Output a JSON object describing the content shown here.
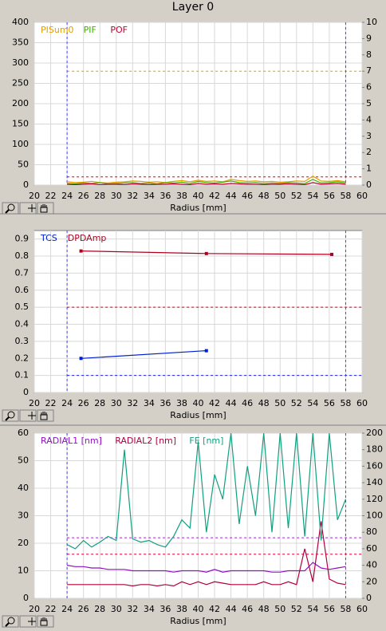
{
  "title": "Layer 0",
  "chart_data": [
    {
      "type": "line",
      "xlabel": "Radius [mm]",
      "x": [
        24,
        25,
        26,
        27,
        28,
        29,
        30,
        31,
        32,
        33,
        34,
        35,
        36,
        37,
        38,
        39,
        40,
        41,
        42,
        43,
        44,
        45,
        46,
        47,
        48,
        49,
        50,
        51,
        52,
        53,
        54,
        55,
        56,
        57,
        58
      ],
      "series": [
        {
          "name": "PISum0",
          "color": "#e0a000",
          "values": [
            8,
            6,
            7,
            9,
            6,
            5,
            7,
            8,
            10,
            9,
            7,
            8,
            6,
            9,
            11,
            8,
            12,
            9,
            10,
            8,
            14,
            11,
            9,
            10,
            8,
            9,
            7,
            8,
            10,
            9,
            22,
            10,
            9,
            11,
            8
          ]
        },
        {
          "name": "PIF",
          "color": "#40b000",
          "values": [
            4,
            3,
            5,
            4,
            6,
            3,
            4,
            5,
            6,
            4,
            5,
            3,
            6,
            5,
            7,
            4,
            9,
            6,
            5,
            7,
            10,
            6,
            5,
            6,
            4,
            5,
            4,
            6,
            5,
            4,
            14,
            5,
            6,
            8,
            5
          ]
        },
        {
          "name": "POF",
          "color": "#c00030",
          "values": [
            2,
            1,
            2,
            3,
            1,
            2,
            2,
            1,
            3,
            2,
            1,
            2,
            2,
            3,
            2,
            1,
            4,
            2,
            3,
            2,
            4,
            3,
            2,
            2,
            1,
            2,
            2,
            3,
            2,
            1,
            6,
            2,
            3,
            4,
            2
          ]
        }
      ],
      "xlim": [
        20,
        60
      ],
      "xticks": [
        20,
        22,
        24,
        26,
        28,
        30,
        32,
        34,
        36,
        38,
        40,
        42,
        44,
        46,
        48,
        50,
        52,
        54,
        56,
        58,
        60
      ],
      "ylim": [
        0,
        400
      ],
      "yticks": [
        0,
        50,
        100,
        150,
        200,
        250,
        300,
        350,
        400
      ],
      "y2lim": [
        0,
        10
      ],
      "y2ticks": [
        0,
        1,
        2,
        3,
        4,
        5,
        6,
        7,
        8,
        9,
        10
      ],
      "hlines": [
        {
          "value": 280,
          "color": "#d4a017"
        },
        {
          "value": 20,
          "color": "#e00000"
        }
      ],
      "vlines": [
        {
          "value": 24,
          "color": "#4040ff"
        },
        {
          "value": 58,
          "color": "#4040ff"
        }
      ],
      "grid": true
    },
    {
      "type": "line",
      "xlabel": "Radius [mm]",
      "markers": true,
      "x": [
        25.7,
        41,
        56.3
      ],
      "series": [
        {
          "name": "TCS",
          "color": "#0020d0",
          "values": [
            0.2,
            0.245,
            null
          ]
        },
        {
          "name": "DPDAmp",
          "color": "#b00020",
          "values": [
            0.83,
            0.815,
            0.81
          ]
        }
      ],
      "xlim": [
        20,
        60
      ],
      "xticks": [
        20,
        22,
        24,
        26,
        28,
        30,
        32,
        34,
        36,
        38,
        40,
        42,
        44,
        46,
        48,
        50,
        52,
        54,
        56,
        58,
        60
      ],
      "ylim": [
        0,
        0.95
      ],
      "yticks": [
        0,
        0.1,
        0.2,
        0.3,
        0.4,
        0.5,
        0.6,
        0.7,
        0.8,
        0.9
      ],
      "hlines": [
        {
          "value": 0.5,
          "color": "#c00020"
        },
        {
          "value": 0.1,
          "color": "#2020e0"
        }
      ],
      "vlines": [
        {
          "value": 24,
          "color": "#4040ff"
        },
        {
          "value": 58,
          "color": "#4040ff"
        }
      ],
      "grid": true
    },
    {
      "type": "line",
      "xlabel": "Radius [mm]",
      "x": [
        24,
        25,
        26,
        27,
        28,
        29,
        30,
        31,
        32,
        33,
        34,
        35,
        36,
        37,
        38,
        39,
        40,
        41,
        42,
        43,
        44,
        45,
        46,
        47,
        48,
        49,
        50,
        51,
        52,
        53,
        54,
        55,
        56,
        57,
        58
      ],
      "series": [
        {
          "name": "RADIAL1 [nm]",
          "color": "#9010c0",
          "values": [
            12,
            11.5,
            11.5,
            11,
            11,
            10.5,
            10.5,
            10.5,
            10,
            10,
            10,
            10,
            10,
            9.5,
            10,
            10,
            10,
            9.5,
            10.5,
            9.5,
            10,
            10,
            10,
            10,
            10,
            9.5,
            9.5,
            10,
            10,
            10,
            13,
            11,
            10.5,
            11,
            11.5
          ]
        },
        {
          "name": "RADIAL2 [nm]",
          "color": "#b00040",
          "values": [
            5,
            5,
            5,
            5,
            5,
            5,
            5,
            5,
            4.5,
            5,
            5,
            4.5,
            5,
            4.5,
            6,
            5,
            6,
            5,
            6,
            5.5,
            5,
            5,
            5,
            5,
            6,
            5,
            5,
            6,
            5,
            18,
            6,
            28,
            7,
            5.5,
            5
          ]
        },
        {
          "name": "FE [nm]",
          "color": "#10a080",
          "axis": "y2",
          "values": [
            65,
            60,
            70,
            62,
            68,
            75,
            70,
            180,
            72,
            68,
            70,
            65,
            62,
            75,
            95,
            85,
            190,
            80,
            150,
            120,
            200,
            90,
            160,
            100,
            200,
            80,
            200,
            85,
            200,
            75,
            200,
            70,
            200,
            95,
            120
          ]
        }
      ],
      "xlim": [
        20,
        60
      ],
      "xticks": [
        20,
        22,
        24,
        26,
        28,
        30,
        32,
        34,
        36,
        38,
        40,
        42,
        44,
        46,
        48,
        50,
        52,
        54,
        56,
        58,
        60
      ],
      "ylim": [
        0,
        60
      ],
      "yticks": [
        0,
        10,
        20,
        30,
        40,
        50,
        60
      ],
      "y2lim": [
        0,
        200
      ],
      "y2ticks": [
        0,
        20,
        40,
        60,
        80,
        100,
        120,
        140,
        160,
        180,
        200
      ],
      "hlines": [
        {
          "value": 22,
          "color": "#a020d0"
        },
        {
          "value": 16,
          "color": "#d00030"
        }
      ],
      "vlines": [
        {
          "value": 24,
          "color": "#4040ff"
        },
        {
          "value": 58,
          "color": "#4040ff"
        }
      ],
      "grid": true
    }
  ]
}
